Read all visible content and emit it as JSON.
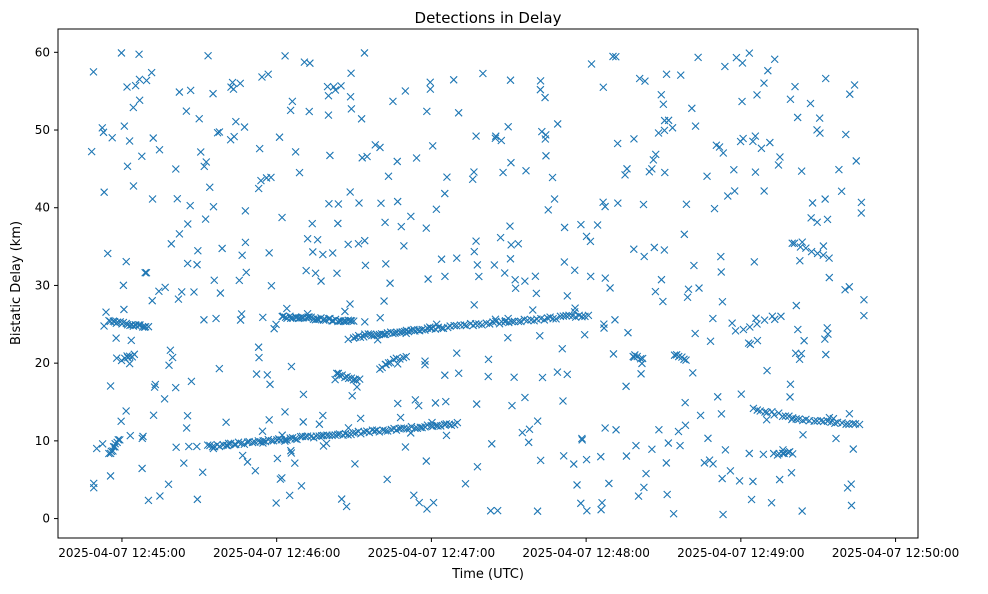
{
  "chart_data": {
    "type": "scatter",
    "title": "Detections in Delay",
    "xlabel": "Time (UTC)",
    "ylabel": "Bistatic Delay (km)",
    "x_unit": "seconds after 2025-04-07 12:44:00",
    "xlim": [
      35.2,
      368.7
    ],
    "ylim": [
      -2.5,
      63.0
    ],
    "x_ticks": [
      {
        "value": 60,
        "label": "2025-04-07 12:45:00"
      },
      {
        "value": 120,
        "label": "2025-04-07 12:46:00"
      },
      {
        "value": 180,
        "label": "2025-04-07 12:47:00"
      },
      {
        "value": 240,
        "label": "2025-04-07 12:48:00"
      },
      {
        "value": 300,
        "label": "2025-04-07 12:49:00"
      },
      {
        "value": 360,
        "label": "2025-04-07 12:50:00"
      }
    ],
    "y_ticks": [
      0,
      10,
      20,
      30,
      40,
      50,
      60
    ],
    "marker": "x",
    "color": "#1f77b4",
    "grid": false,
    "series": [
      {
        "name": "",
        "tracks": [
          {
            "x_start": 55,
            "x_end": 70,
            "y_start": 25.4,
            "y_end": 24.6,
            "count": 22
          },
          {
            "x_start": 122,
            "x_end": 150,
            "y_start": 26.0,
            "y_end": 25.4,
            "count": 40
          },
          {
            "x_start": 150,
            "x_end": 180,
            "y_start": 23.4,
            "y_end": 24.5,
            "count": 35
          },
          {
            "x_start": 180,
            "x_end": 241,
            "y_start": 24.5,
            "y_end": 26.2,
            "count": 50
          },
          {
            "x_start": 143,
            "x_end": 152,
            "y_start": 18.6,
            "y_end": 17.8,
            "count": 12
          },
          {
            "x_start": 160,
            "x_end": 170,
            "y_start": 19.4,
            "y_end": 21.0,
            "count": 10
          },
          {
            "x_start": 93,
            "x_end": 190,
            "y_start": 9.3,
            "y_end": 12.2,
            "count": 95
          },
          {
            "x_start": 55,
            "x_end": 59,
            "y_start": 8.2,
            "y_end": 10.2,
            "count": 10
          },
          {
            "x_start": 60,
            "x_end": 65,
            "y_start": 20.4,
            "y_end": 21.0,
            "count": 6
          },
          {
            "x_start": 305,
            "x_end": 320,
            "y_start": 14.1,
            "y_end": 13.0,
            "count": 12
          },
          {
            "x_start": 320,
            "x_end": 346,
            "y_start": 12.8,
            "y_end": 12.0,
            "count": 20
          },
          {
            "x_start": 313,
            "x_end": 320,
            "y_start": 8.2,
            "y_end": 8.5,
            "count": 8
          },
          {
            "x_start": 321,
            "x_end": 334,
            "y_start": 35.4,
            "y_end": 33.4,
            "count": 7
          },
          {
            "x_start": 298,
            "x_end": 312,
            "y_start": 24.0,
            "y_end": 26.0,
            "count": 6
          },
          {
            "x_start": 258,
            "x_end": 262,
            "y_start": 21.0,
            "y_end": 20.6,
            "count": 5
          },
          {
            "x_start": 275,
            "x_end": 279,
            "y_start": 21.0,
            "y_end": 20.5,
            "count": 5
          }
        ],
        "clutter": {
          "x_range": [
            47,
            348
          ],
          "y_range": [
            0.5,
            60
          ],
          "count": 560
        }
      }
    ]
  }
}
